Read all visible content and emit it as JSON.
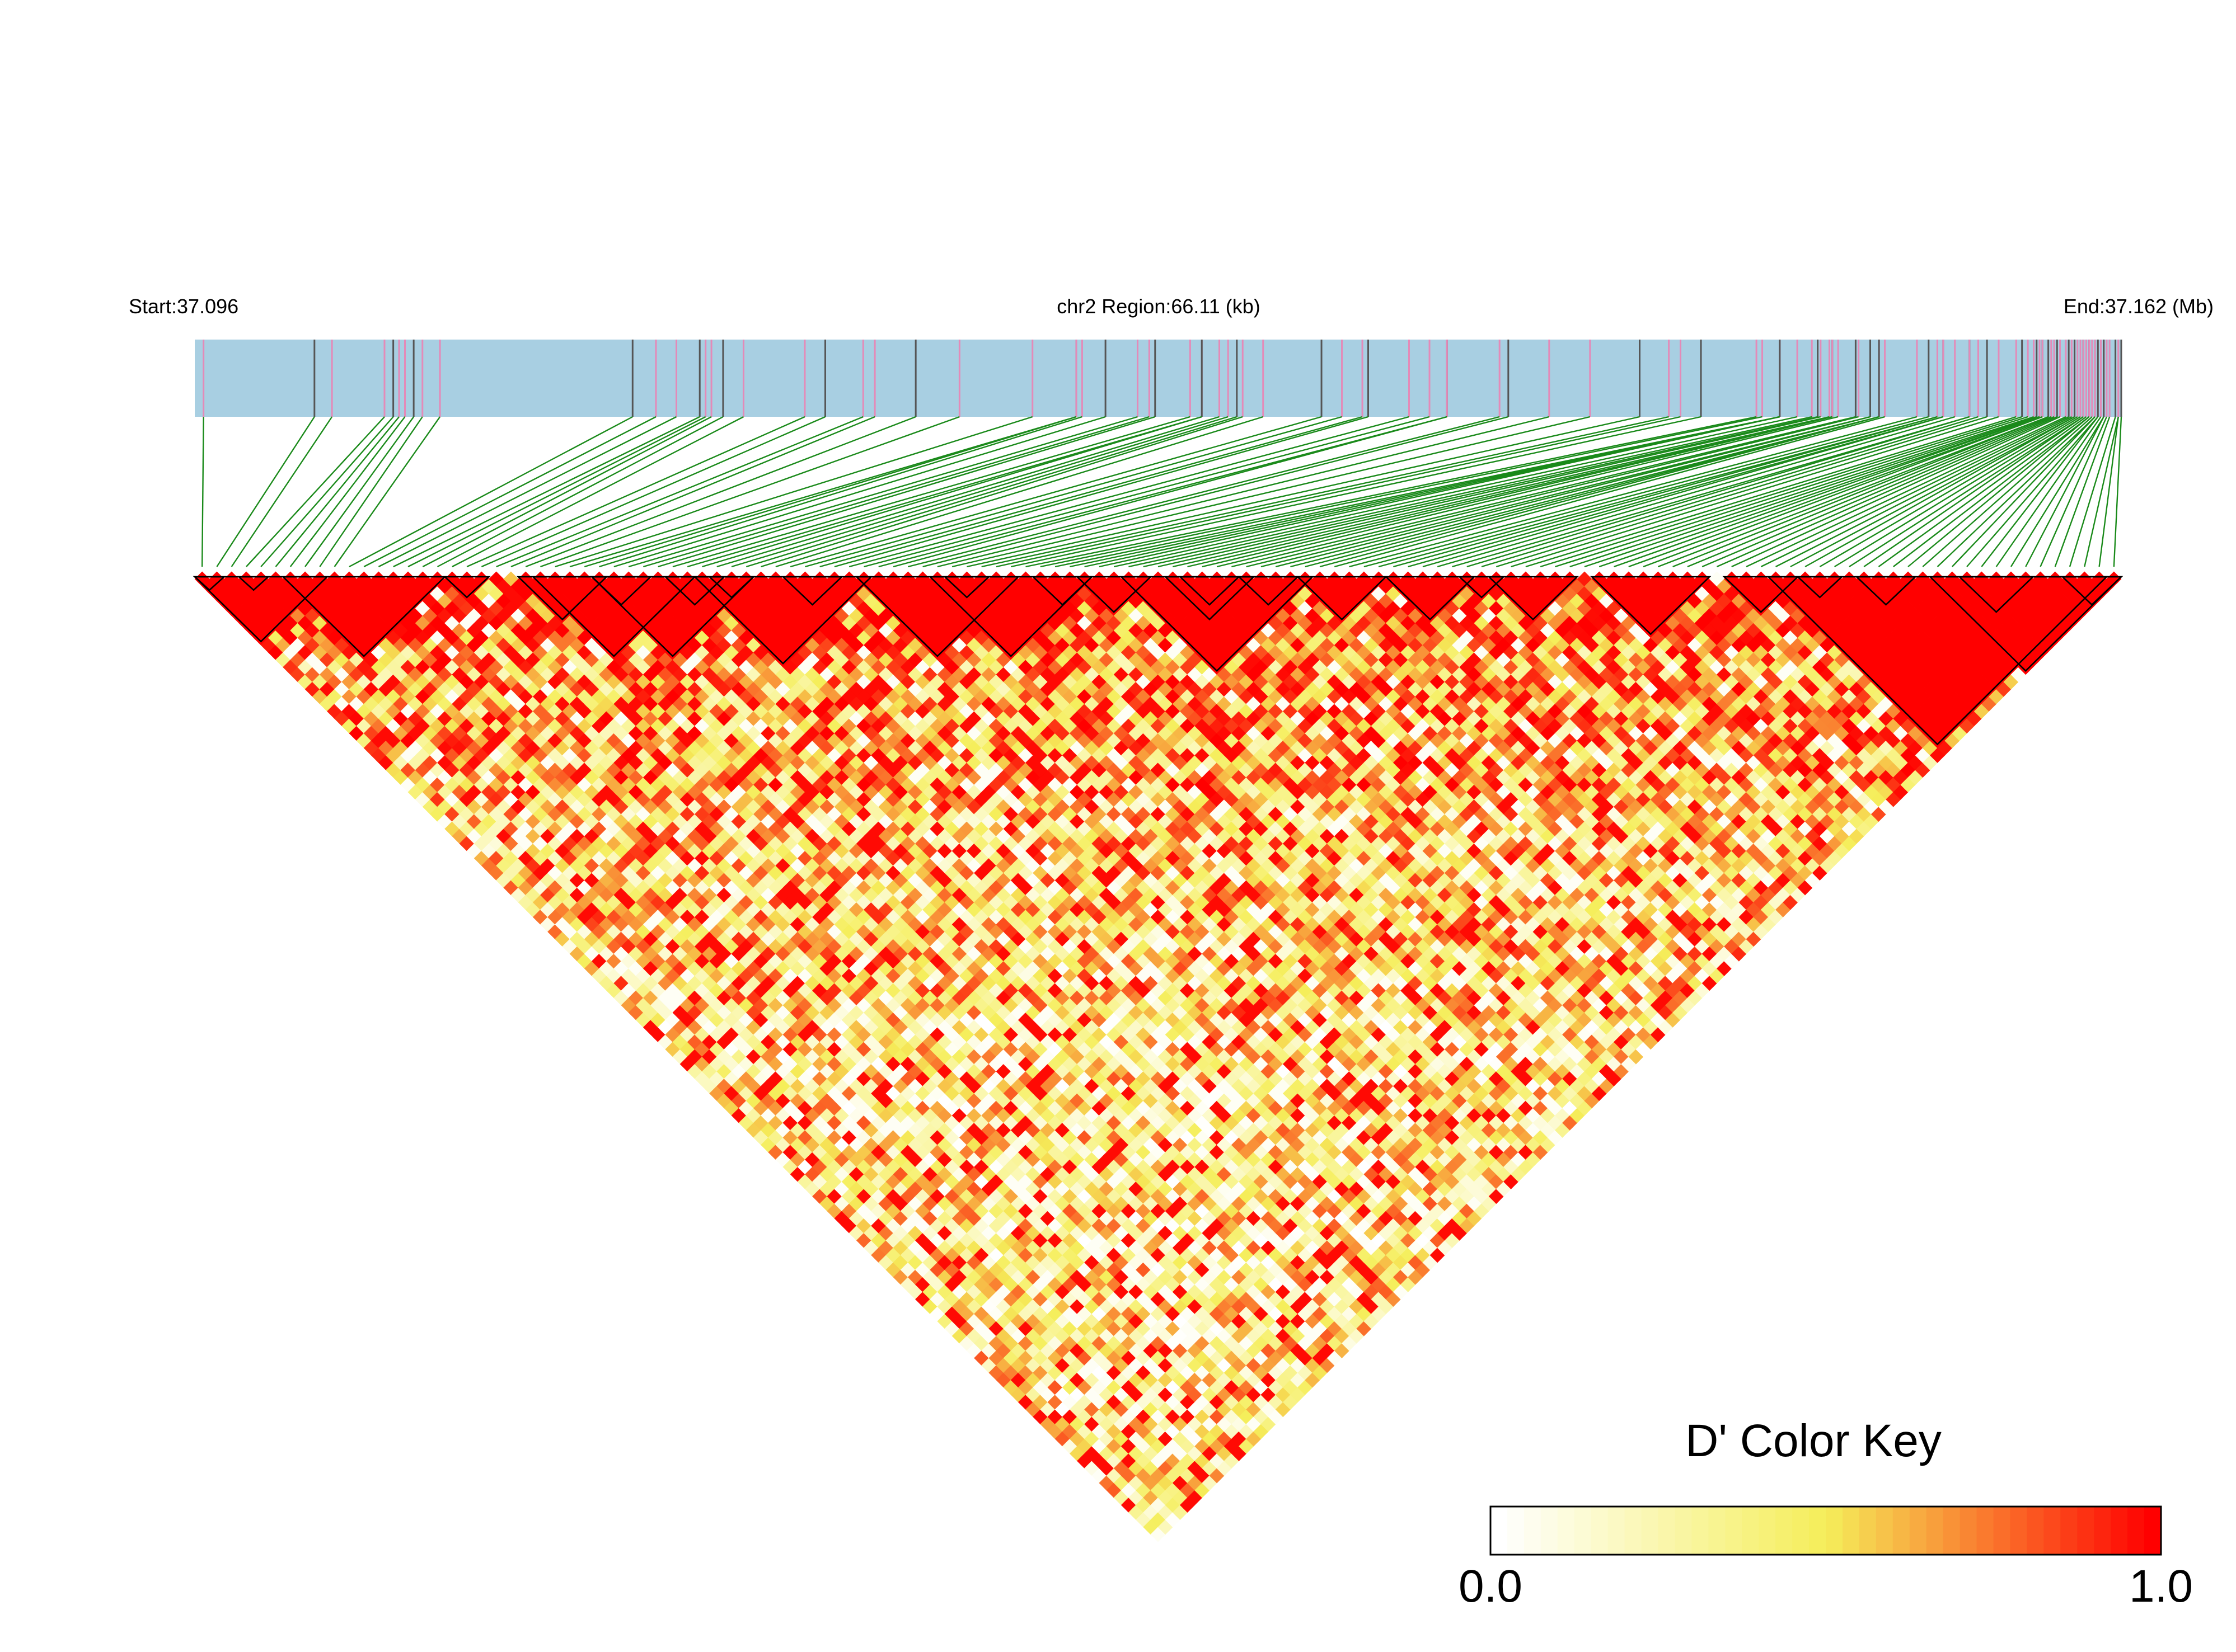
{
  "chart_data": {
    "type": "heatmap",
    "subtype": "LD triangle heatmap",
    "header": {
      "start_label": "Start:37.096",
      "region_label": "chr2 Region:66.11 (kb)",
      "end_label": "End:37.162 (Mb)"
    },
    "region": {
      "chrom": "chr2",
      "start_mb": 37.096,
      "end_mb": 37.162,
      "length_kb": 66.11
    },
    "snp_count": 131,
    "snp_positions_mb": [
      37.0963,
      37.1001,
      37.1007,
      37.1025,
      37.1028,
      37.103,
      37.1032,
      37.1035,
      37.1038,
      37.1044,
      37.111,
      37.1118,
      37.1125,
      37.1133,
      37.1135,
      37.1137,
      37.1141,
      37.1148,
      37.1169,
      37.1176,
      37.1189,
      37.1193,
      37.1207,
      37.1222,
      37.1247,
      37.1262,
      37.1262,
      37.1264,
      37.1272,
      37.1283,
      37.1287,
      37.1289,
      37.1301,
      37.1305,
      37.1305,
      37.1311,
      37.1314,
      37.1317,
      37.1319,
      37.1326,
      37.1346,
      37.1353,
      37.136,
      37.1362,
      37.1376,
      37.1383,
      37.1389,
      37.1389,
      37.1407,
      37.141,
      37.1424,
      37.1438,
      37.1455,
      37.1465,
      37.1469,
      37.1476,
      37.1495,
      37.1497,
      37.1503,
      37.1503,
      37.1503,
      37.1503,
      37.1509,
      37.1514,
      37.1516,
      37.1517,
      37.152,
      37.1521,
      37.1521,
      37.1523,
      37.1529,
      37.153,
      37.1534,
      37.1534,
      37.1537,
      37.1537,
      37.1537,
      37.1539,
      37.155,
      37.1554,
      37.1557,
      37.1557,
      37.1559,
      37.1559,
      37.1563,
      37.1568,
      37.1568,
      37.1571,
      37.1574,
      37.1578,
      37.1584,
      37.1586,
      37.1588,
      37.159,
      37.1591,
      37.1592,
      37.1592,
      37.1593,
      37.1593,
      37.1595,
      37.1595,
      37.1596,
      37.1597,
      37.1598,
      37.1599,
      37.1601,
      37.1602,
      37.1603,
      37.1604,
      37.1604,
      37.1605,
      37.1606,
      37.1607,
      37.1607,
      37.1608,
      37.1609,
      37.1609,
      37.161,
      37.1611,
      37.1611,
      37.1612,
      37.1612,
      37.1613,
      37.1614,
      37.1614,
      37.1615,
      37.1616,
      37.1618,
      37.1619,
      37.1619,
      37.162
    ],
    "metric": "D'",
    "value_range": [
      0.0,
      1.0
    ],
    "haplotype_blocks_snp_index": [
      [
        0,
        1
      ],
      [
        3,
        4
      ],
      [
        17,
        19
      ],
      [
        40,
        43
      ],
      [
        51,
        53
      ],
      [
        57,
        60
      ],
      [
        71,
        74
      ],
      [
        86,
        88
      ],
      [
        109,
        111
      ],
      [
        113,
        116
      ],
      [
        120,
        124
      ],
      [
        127,
        130
      ],
      [
        22,
        27
      ],
      [
        27,
        30
      ],
      [
        32,
        35
      ],
      [
        35,
        37
      ],
      [
        60,
        64
      ],
      [
        67,
        70
      ],
      [
        88,
        93
      ],
      [
        95,
        102
      ],
      [
        104,
        108
      ],
      [
        27,
        37
      ],
      [
        50,
        60
      ],
      [
        66,
        71
      ],
      [
        75,
        80
      ],
      [
        81,
        86
      ],
      [
        107,
        129
      ],
      [
        118,
        130
      ],
      [
        0,
        8
      ],
      [
        6,
        16
      ],
      [
        23,
        33
      ],
      [
        34,
        45
      ],
      [
        45,
        55
      ],
      [
        63,
        75
      ]
    ],
    "legend": {
      "title": "D' Color Key",
      "min_label": "0.0",
      "max_label": "1.0",
      "colors": [
        "#ffffff",
        "#f5ee5a",
        "#ff0000"
      ]
    },
    "colors": {
      "chromosome_bar": "#a8cfe2",
      "snp_tick_dark": "#555555",
      "snp_tick_pink": "#e48ab8",
      "connector": "#1a8a1a",
      "block_outline": "#000000"
    },
    "grid": false
  }
}
